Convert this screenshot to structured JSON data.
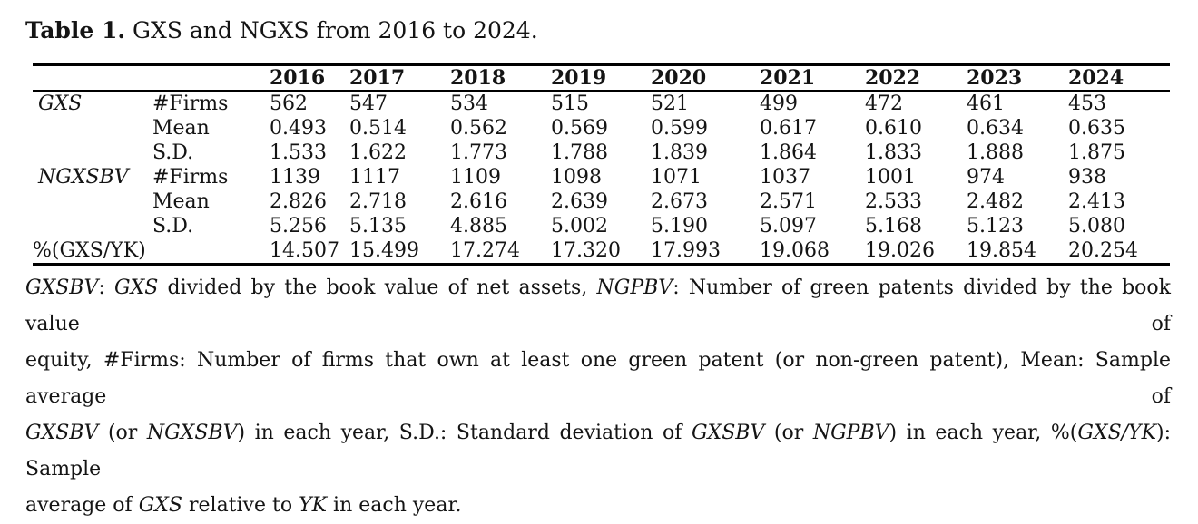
{
  "page": {
    "background": "#ffffff",
    "text_color": "#141414"
  },
  "title": {
    "label_bold": "Table 1.",
    "label_rest": " GXS and NGXS from 2016 to 2024."
  },
  "chart_data": {
    "type": "table",
    "title": "Table 1. GXS and NGXS from 2016 to 2024.",
    "categories": [
      "2016",
      "2017",
      "2018",
      "2019",
      "2020",
      "2021",
      "2022",
      "2023",
      "2024"
    ],
    "series": [
      {
        "name": "GXS #Firms",
        "values": [
          562,
          547,
          534,
          515,
          521,
          499,
          472,
          461,
          453
        ]
      },
      {
        "name": "GXS Mean",
        "values": [
          0.493,
          0.514,
          0.562,
          0.569,
          0.599,
          0.617,
          0.61,
          0.634,
          0.635
        ]
      },
      {
        "name": "GXS S.D.",
        "values": [
          1.533,
          1.622,
          1.773,
          1.788,
          1.839,
          1.864,
          1.833,
          1.888,
          1.875
        ]
      },
      {
        "name": "NGXSBV #Firms",
        "values": [
          1139,
          1117,
          1109,
          1098,
          1071,
          1037,
          1001,
          974,
          938
        ]
      },
      {
        "name": "NGXSBV Mean",
        "values": [
          2.826,
          2.718,
          2.616,
          2.639,
          2.673,
          2.571,
          2.533,
          2.482,
          2.413
        ]
      },
      {
        "name": "NGXSBV S.D.",
        "values": [
          5.256,
          5.135,
          4.885,
          5.002,
          5.19,
          5.097,
          5.168,
          5.123,
          5.08
        ]
      },
      {
        "name": "%(GXS/YK)",
        "values": [
          14.507,
          15.499,
          17.274,
          17.32,
          17.993,
          19.068,
          19.026,
          19.854,
          20.254
        ]
      }
    ]
  },
  "table": {
    "year_headers": [
      "2016",
      "2017",
      "2018",
      "2019",
      "2020",
      "2021",
      "2022",
      "2023",
      "2024"
    ],
    "rows": [
      {
        "group": "GXS",
        "group_italic": true,
        "stat": "#Firms",
        "values": [
          "562",
          "547",
          "534",
          "515",
          "521",
          "499",
          "472",
          "461",
          "453"
        ]
      },
      {
        "group": "",
        "group_italic": false,
        "stat": "Mean",
        "values": [
          "0.493",
          "0.514",
          "0.562",
          "0.569",
          "0.599",
          "0.617",
          "0.610",
          "0.634",
          "0.635"
        ]
      },
      {
        "group": "",
        "group_italic": false,
        "stat": "S.D.",
        "values": [
          "1.533",
          "1.622",
          "1.773",
          "1.788",
          "1.839",
          "1.864",
          "1.833",
          "1.888",
          "1.875"
        ]
      },
      {
        "group": "NGXSBV",
        "group_italic": true,
        "stat": "#Firms",
        "values": [
          "1139",
          "1117",
          "1109",
          "1098",
          "1071",
          "1037",
          "1001",
          "974",
          "938"
        ]
      },
      {
        "group": "",
        "group_italic": false,
        "stat": "Mean",
        "values": [
          "2.826",
          "2.718",
          "2.616",
          "2.639",
          "2.673",
          "2.571",
          "2.533",
          "2.482",
          "2.413"
        ]
      },
      {
        "group": "",
        "group_italic": false,
        "stat": "S.D.",
        "values": [
          "5.256",
          "5.135",
          "4.885",
          "5.002",
          "5.190",
          "5.097",
          "5.168",
          "5.123",
          "5.080"
        ]
      },
      {
        "group": "%(GXS/YK)",
        "group_italic": false,
        "stat": "",
        "values": [
          "14.507",
          "15.499",
          "17.274",
          "17.320",
          "17.993",
          "19.068",
          "19.026",
          "19.854",
          "20.254"
        ]
      }
    ]
  },
  "footnote": {
    "lines": [
      [
        {
          "t": "GXSBV",
          "i": true
        },
        {
          "t": ": ",
          "i": false
        },
        {
          "t": "GXS",
          "i": true
        },
        {
          "t": " divided by the book value of net assets, ",
          "i": false
        },
        {
          "t": "NGPBV",
          "i": true
        },
        {
          "t": ": Number of green patents divided by the book value of",
          "i": false
        }
      ],
      [
        {
          "t": "equity, #Firms: Number of firms that own at least one green patent (or non-green patent), Mean: Sample average of",
          "i": false
        }
      ],
      [
        {
          "t": "GXSBV",
          "i": true
        },
        {
          "t": " (or ",
          "i": false
        },
        {
          "t": "NGXSBV",
          "i": true
        },
        {
          "t": ") in each year, S.D.: Standard deviation of ",
          "i": false
        },
        {
          "t": "GXSBV",
          "i": true
        },
        {
          "t": " (or ",
          "i": false
        },
        {
          "t": "NGPBV",
          "i": true
        },
        {
          "t": ") in each year, %(",
          "i": false
        },
        {
          "t": "GXS/YK",
          "i": true
        },
        {
          "t": "): Sample",
          "i": false
        }
      ],
      [
        {
          "t": "average of ",
          "i": false
        },
        {
          "t": "GXS",
          "i": true
        },
        {
          "t": " relative to ",
          "i": false
        },
        {
          "t": "YK",
          "i": true
        },
        {
          "t": " in each year.",
          "i": false
        }
      ]
    ]
  }
}
